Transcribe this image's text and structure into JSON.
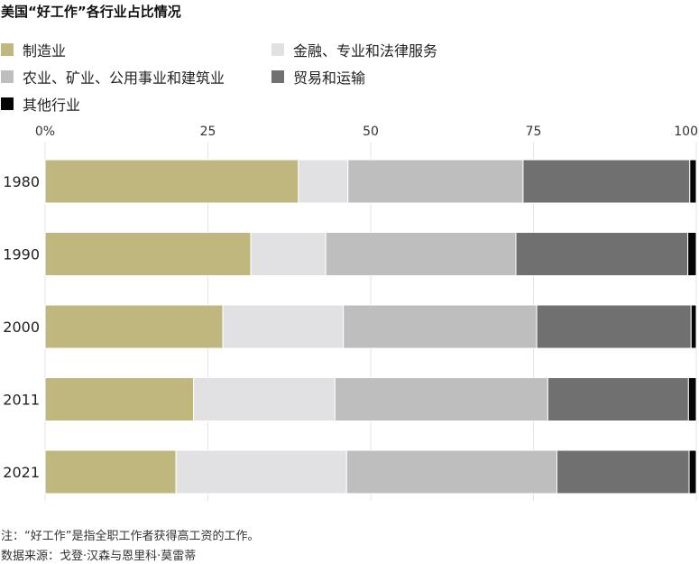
{
  "chart_data": {
    "type": "bar",
    "orientation": "horizontal",
    "stacked": true,
    "title": "美国“好工作”各行业占比情况",
    "categories": [
      "1980",
      "1990",
      "2000",
      "2011",
      "2021"
    ],
    "xlim": [
      0,
      100
    ],
    "xticks": [
      0,
      25,
      50,
      75,
      100
    ],
    "xtick_labels": [
      "0%",
      "25",
      "50",
      "75",
      "100"
    ],
    "grid": true,
    "legend_position": "top",
    "series": [
      {
        "name": "制造业",
        "color": "#bfb77d",
        "values": [
          38.9,
          31.6,
          27.3,
          22.8,
          20.1
        ]
      },
      {
        "name": "金融、专业和法律服务",
        "color": "#e1e1e3",
        "values": [
          7.6,
          11.5,
          18.5,
          21.7,
          26.2
        ]
      },
      {
        "name": "农业、矿业、公用事业和建筑业",
        "color": "#bebebe",
        "values": [
          26.9,
          29.2,
          29.7,
          32.7,
          32.3
        ]
      },
      {
        "name": "贸易和运输",
        "color": "#707070",
        "values": [
          25.6,
          26.4,
          23.7,
          21.6,
          20.3
        ]
      },
      {
        "name": "其他行业",
        "color": "#050505",
        "values": [
          1.0,
          1.3,
          0.8,
          1.2,
          1.1
        ]
      }
    ]
  },
  "footer": {
    "note": "注：“好工作”是指全职工作者获得高工资的工作。",
    "source": "数据来源：戈登·汉森与恩里科·莫雷蒂"
  }
}
